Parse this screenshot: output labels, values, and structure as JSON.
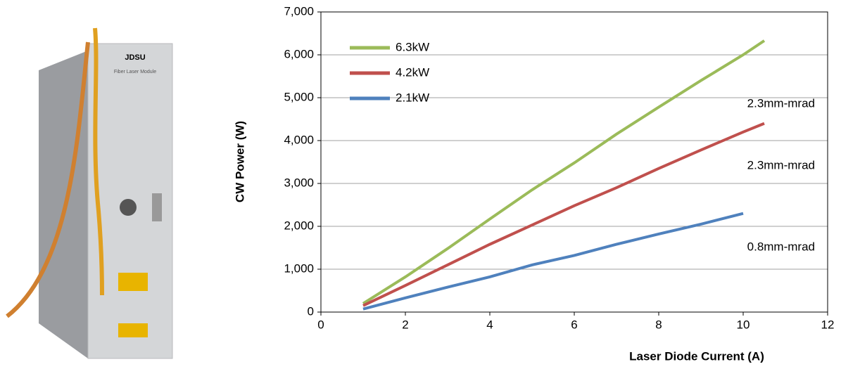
{
  "chart_data": {
    "type": "line",
    "x_label": "Laser Diode Current (A)",
    "y_label": "CW Power (W)",
    "xlim": [
      0,
      12
    ],
    "xticks": [
      0,
      2,
      4,
      6,
      8,
      10,
      12
    ],
    "ylim": [
      0,
      7000
    ],
    "yticks": [
      0,
      {
        "value": 1000,
        "label": "1,000"
      },
      {
        "value": 2000,
        "label": "2,000"
      },
      {
        "value": 3000,
        "label": "3,000"
      },
      {
        "value": 4000,
        "label": "4,000"
      },
      {
        "value": 5000,
        "label": "5,000"
      },
      {
        "value": 6000,
        "label": "6,000"
      },
      {
        "value": 7000,
        "label": "7,000"
      }
    ],
    "grid": true,
    "legend": "top-left",
    "series": [
      {
        "name": "6.3kW",
        "color": "#9bbb59",
        "x": [
          1,
          2,
          3,
          4,
          5,
          6,
          7,
          8,
          9,
          10,
          10.5
        ],
        "values": [
          200,
          820,
          1480,
          2170,
          2850,
          3480,
          4150,
          4780,
          5400,
          6000,
          6330
        ]
      },
      {
        "name": "4.2kW",
        "color": "#c0504d",
        "x": [
          1,
          2,
          3,
          4,
          5,
          6,
          7,
          8,
          9,
          10,
          10.5
        ],
        "values": [
          150,
          620,
          1100,
          1580,
          2030,
          2480,
          2900,
          3350,
          3780,
          4200,
          4400
        ]
      },
      {
        "name": "2.1kW",
        "color": "#4f81bd",
        "x": [
          1,
          2,
          3,
          4,
          5,
          6,
          7,
          8,
          9,
          10
        ],
        "values": [
          70,
          330,
          580,
          820,
          1100,
          1320,
          1580,
          1820,
          2050,
          2300
        ]
      }
    ],
    "annotations": [
      "2.3mm-mrad",
      "2.3mm-mrad",
      "0.8mm-mrad"
    ]
  },
  "image_labels": {
    "brand": "JDSU",
    "caption": "Fiber Laser Module"
  }
}
